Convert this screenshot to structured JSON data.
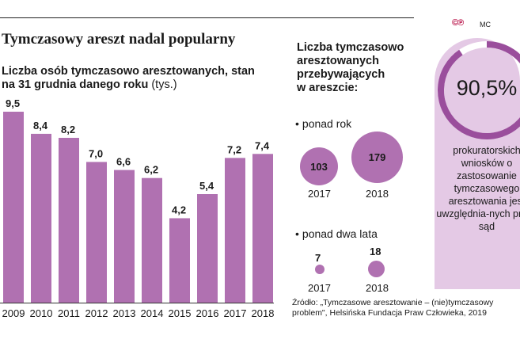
{
  "header": {
    "title": "Tymczasowy areszt nadal popularny",
    "subtitle_bold": "Liczba osób tymczasowo aresztowanych, stan na 31 grudnia danego roku",
    "subtitle_unit": "(tys.)"
  },
  "brand": {
    "logo": "©℗",
    "credit": "MC"
  },
  "chart_data": {
    "type": "bar",
    "title": "Liczba osób tymczasowo aresztowanych, stan na 31 grudnia danego roku (tys.)",
    "categories": [
      "2009",
      "2010",
      "2011",
      "2012",
      "2013",
      "2014",
      "2015",
      "2016",
      "2017",
      "2018"
    ],
    "values": [
      9.5,
      8.4,
      8.2,
      7.0,
      6.6,
      6.2,
      4.2,
      5.4,
      7.2,
      7.4
    ],
    "labels": [
      "9,5",
      "8,4",
      "8,2",
      "7,0",
      "6,6",
      "6,2",
      "4,2",
      "5,4",
      "7,2",
      "7,4"
    ],
    "ylim": [
      0,
      9.5
    ],
    "xlabel": "",
    "ylabel": "",
    "bar_color": "#b071b1"
  },
  "detention": {
    "title": "Liczba tymczasowo\naresztowanych\nprzebywających\nw areszcie:",
    "groups": [
      {
        "label": "ponad rok",
        "items": [
          {
            "year": "2017",
            "value": 103
          },
          {
            "year": "2018",
            "value": 179
          }
        ]
      },
      {
        "label": "ponad dwa lata",
        "items": [
          {
            "year": "2017",
            "value": 7
          },
          {
            "year": "2018",
            "value": 18
          }
        ]
      }
    ]
  },
  "gauge": {
    "value_pct": 90.5,
    "value_label": "90,5%",
    "description": "prokuratorskich wniosków o zastosowanie tymczasowego aresztowania jest uwzględnia-nych przez sąd",
    "ring_color": "#9a4e9c",
    "panel_color": "#e4c9e5"
  },
  "source": "Źródło: „Tymczasowe aresztowanie – (nie)tymczasowy problem\", Helsińska Fundacja Praw Człowieka, 2019"
}
